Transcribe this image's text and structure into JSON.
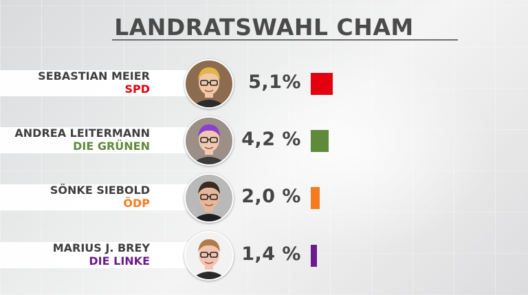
{
  "chart_data": {
    "type": "bar",
    "title": "LANDRATSWAHL CHAM",
    "categories": [
      "SEBASTIAN MEIER",
      "ANDREA LEITERMANN",
      "SÖNKE SIEBOLD",
      "MARIUS J. BREY"
    ],
    "series": [
      {
        "values": [
          5.1,
          4.2,
          2.0,
          1.4
        ]
      }
    ],
    "candidates": [
      {
        "name": "SEBASTIAN MEIER",
        "party": "SPD",
        "party_color": "#e3000f",
        "value": 5.1,
        "value_label": "5,1%",
        "avatar": "avatar-sebastian-meier"
      },
      {
        "name": "ANDREA LEITERMANN",
        "party": "DIE GRÜNEN",
        "party_color": "#5e8a3a",
        "value": 4.2,
        "value_label": "4,2 %",
        "avatar": "avatar-andrea-leitermann"
      },
      {
        "name": "SÖNKE SIEBOLD",
        "party": "ÖDP",
        "party_color": "#f47b20",
        "value": 2.0,
        "value_label": "2,0 %",
        "avatar": "avatar-soenke-siebold"
      },
      {
        "name": "MARIUS J. BREY",
        "party": "DIE LINKE",
        "party_color": "#6a1c8a",
        "value": 1.4,
        "value_label": "1,4 %",
        "avatar": "avatar-marius-brey"
      }
    ]
  }
}
